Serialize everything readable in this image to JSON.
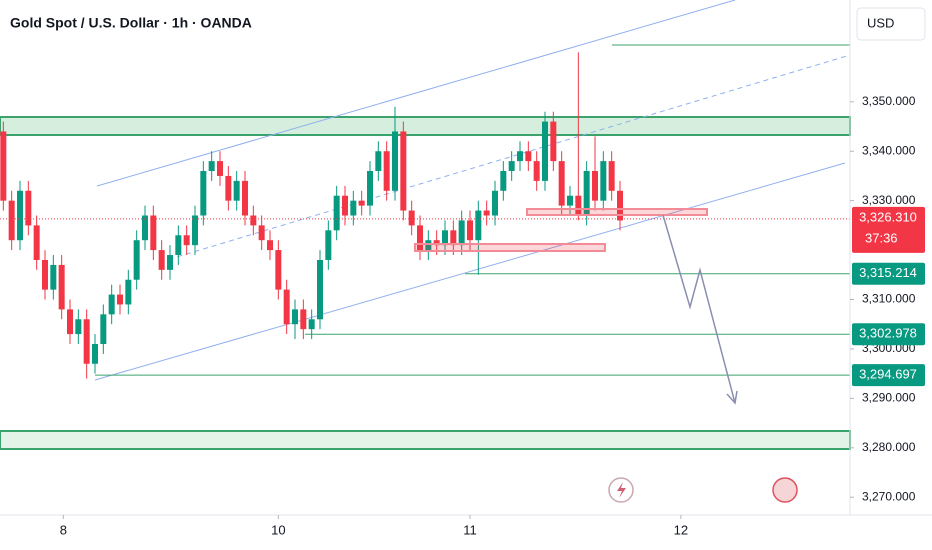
{
  "chart_data": {
    "type": "candlestick",
    "title": "Gold Spot / U.S. Dollar · 1h · OANDA",
    "currency": "USD",
    "up_color": "#089981",
    "down_color": "#f23645",
    "open": [
      3344,
      3330,
      3322,
      3332,
      3325,
      3318,
      3312,
      3317,
      3308,
      3303,
      3306,
      3297,
      3301,
      3307,
      3311,
      3309,
      3314,
      3322,
      3327,
      3320,
      3316,
      3319,
      3323,
      3321,
      3327,
      3336,
      3338,
      3335,
      3330,
      3334,
      3327,
      3325,
      3322,
      3320,
      3312,
      3305,
      3308,
      3304,
      3306,
      3318,
      3324,
      3331,
      3327,
      3330,
      3329,
      3336,
      3340,
      3332,
      3344,
      3328,
      3325,
      3320,
      3322,
      3321,
      3324,
      3321,
      3326,
      3322,
      3328,
      3327,
      3332,
      3336,
      3338,
      3340,
      3338,
      3334,
      3346,
      3338,
      3329,
      3331,
      3327,
      3336,
      3330,
      3338,
      3332
    ],
    "high": [
      3346,
      3332,
      3334,
      3334,
      3327,
      3320,
      3319,
      3319,
      3310,
      3308,
      3308,
      3303,
      3309,
      3313,
      3313,
      3316,
      3324,
      3329,
      3329,
      3322,
      3321,
      3325,
      3325,
      3329,
      3338,
      3340,
      3340,
      3337,
      3336,
      3336,
      3329,
      3327,
      3324,
      3322,
      3314,
      3310,
      3310,
      3308,
      3320,
      3326,
      3333,
      3333,
      3332,
      3332,
      3338,
      3342,
      3342,
      3349,
      3346,
      3330,
      3327,
      3324,
      3324,
      3326,
      3326,
      3328,
      3328,
      3330,
      3330,
      3334,
      3338,
      3340,
      3342,
      3342,
      3340,
      3348,
      3348,
      3340,
      3333,
      3360,
      3338,
      3343,
      3340,
      3340,
      3334
    ],
    "low": [
      3328,
      3320,
      3320,
      3323,
      3316,
      3310,
      3310,
      3306,
      3301,
      3301,
      3294,
      3295,
      3299,
      3305,
      3307,
      3307,
      3312,
      3320,
      3318,
      3314,
      3314,
      3317,
      3319,
      3319,
      3325,
      3334,
      3333,
      3328,
      3328,
      3325,
      3323,
      3320,
      3318,
      3310,
      3303,
      3302,
      3302,
      3302,
      3304,
      3316,
      3322,
      3325,
      3325,
      3327,
      3327,
      3334,
      3330,
      3330,
      3326,
      3323,
      3318,
      3318,
      3319,
      3319,
      3319,
      3319,
      3320,
      3315,
      3325,
      3325,
      3330,
      3334,
      3336,
      3336,
      3332,
      3332,
      3336,
      3327,
      3327,
      3326,
      3325,
      3328,
      3328,
      3330,
      3324
    ],
    "close": [
      3330,
      3322,
      3332,
      3325,
      3318,
      3312,
      3317,
      3308,
      3303,
      3306,
      3297,
      3301,
      3307,
      3311,
      3309,
      3314,
      3322,
      3327,
      3320,
      3316,
      3319,
      3323,
      3321,
      3327,
      3336,
      3338,
      3335,
      3330,
      3334,
      3327,
      3325,
      3322,
      3320,
      3312,
      3305,
      3308,
      3304,
      3306,
      3318,
      3324,
      3331,
      3327,
      3330,
      3329,
      3336,
      3340,
      3332,
      3344,
      3328,
      3325,
      3320,
      3322,
      3321,
      3324,
      3321,
      3326,
      3322,
      3328,
      3327,
      3332,
      3336,
      3338,
      3340,
      3338,
      3334,
      3346,
      3338,
      3329,
      3331,
      3327,
      3336,
      3330,
      3338,
      3332,
      3326
    ],
    "xlim": [
      -0.4,
      101.6
    ],
    "xticks": [
      {
        "value": 7.2,
        "label": "8"
      },
      {
        "value": 33,
        "label": "10"
      },
      {
        "value": 56,
        "label": "11"
      },
      {
        "value": 81.3,
        "label": "12"
      }
    ],
    "ylim": [
      3266.4,
      3370.6
    ],
    "yticks": [
      {
        "value": 3270,
        "label": "3,270.000"
      },
      {
        "value": 3280,
        "label": "3,280.000"
      },
      {
        "value": 3290,
        "label": "3,290.000"
      },
      {
        "value": 3300,
        "label": "3,300.000"
      },
      {
        "value": 3310,
        "label": "3,310.000"
      },
      {
        "value": 3330,
        "label": "3,330.000"
      },
      {
        "value": 3340,
        "label": "3,340.000"
      },
      {
        "value": 3350,
        "label": "3,350.000"
      }
    ],
    "grid": false,
    "last_price": {
      "value": 3326.31,
      "label": "3,326.310",
      "countdown": "37:36"
    },
    "levels": [
      {
        "value": 3315.214,
        "label": "3,315.214"
      },
      {
        "value": 3302.978,
        "label": "3,302.978"
      },
      {
        "value": 3294.697,
        "label": "3,294.697"
      }
    ]
  }
}
